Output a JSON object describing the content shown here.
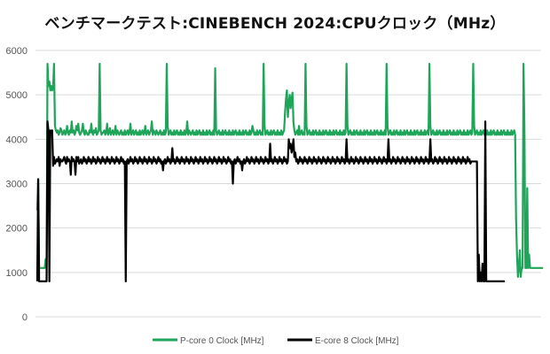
{
  "chart_data": {
    "type": "line",
    "title": "ベンチマークテスト:CINEBENCH 2024:CPUクロック（MHz）",
    "xlabel": "",
    "ylabel": "",
    "ylim": [
      0,
      6000
    ],
    "y_ticks": [
      "0",
      "1000",
      "2000",
      "3000",
      "4000",
      "5000",
      "6000"
    ],
    "grid": true,
    "legend_position": "bottom",
    "n_points": 540,
    "series": [
      {
        "name": "P-core 0 Clock [MHz]",
        "color": "#1fa55a",
        "values": [
          2400,
          3100,
          1100,
          1100,
          1100,
          1100,
          1100,
          1100,
          1100,
          1300,
          1100,
          5700,
          5200,
          5300,
          5100,
          5200,
          5100,
          5150,
          5700,
          4300,
          4200,
          4150,
          4200,
          4100,
          4150,
          4250,
          4200,
          4100,
          4150,
          4200,
          4100,
          4150,
          4300,
          4150,
          4100,
          4200,
          4150,
          4400,
          4150,
          4200,
          4100,
          4150,
          4300,
          4200,
          4350,
          4150,
          4100,
          4150,
          4200,
          4350,
          4150,
          4100,
          4200,
          4150,
          4100,
          4100,
          4200,
          4150,
          4350,
          4150,
          4100,
          4200,
          4150,
          4250,
          4100,
          4150,
          4200,
          5700,
          4200,
          4100,
          4150,
          4150,
          4200,
          4100,
          4150,
          4350,
          4100,
          4150,
          4250,
          4100,
          4150,
          4200,
          4100,
          4150,
          4300,
          4100,
          4200,
          4150,
          4100,
          4150,
          4200,
          4100,
          4150,
          4100,
          4200,
          4100,
          4150,
          4200,
          4100,
          4150,
          4350,
          4100,
          4150,
          4200,
          4100,
          4150,
          4200,
          4100,
          4150,
          4100,
          4200,
          4100,
          4150,
          4200,
          4100,
          4150,
          4300,
          4100,
          4150,
          4200,
          4100,
          4150,
          4200,
          4400,
          4100,
          4200,
          4150,
          4100,
          4200,
          4150,
          4100,
          4150,
          4200,
          4100,
          4150,
          4100,
          4200,
          4100,
          4150,
          5700,
          4300,
          4100,
          4150,
          4200,
          4100,
          4150,
          4100,
          4200,
          4100,
          4150,
          4200,
          4100,
          4150,
          4100,
          4200,
          4100,
          4150,
          4100,
          4200,
          4100,
          4150,
          4400,
          4100,
          4200,
          4150,
          4100,
          4150,
          4200,
          4100,
          4150,
          4100,
          4200,
          4100,
          4150,
          4200,
          4100,
          4150,
          4100,
          4200,
          4100,
          4150,
          4100,
          4200,
          4100,
          4150,
          4200,
          4100,
          4150,
          4100,
          4200,
          4100,
          5600,
          4200,
          4100,
          4150,
          4200,
          4100,
          4150,
          4100,
          4200,
          4100,
          4150,
          4200,
          4100,
          4150,
          4100,
          4200,
          4100,
          4150,
          4100,
          4200,
          4100,
          4150,
          4200,
          4100,
          4150,
          4100,
          4200,
          4100,
          4150,
          4100,
          4200,
          4100,
          4150,
          4200,
          4100,
          4150,
          4100,
          4200,
          4100,
          4150,
          4300,
          4200,
          4100,
          4150,
          4100,
          4200,
          4100,
          4150,
          4200,
          4100,
          4150,
          4100,
          5700,
          4300,
          4100,
          4150,
          4200,
          4100,
          4150,
          4100,
          4200,
          4100,
          4150,
          4200,
          4100,
          4150,
          4100,
          4200,
          4100,
          4150,
          4100,
          4200,
          4100,
          4150,
          4200,
          4600,
          4900,
          5100,
          4500,
          4800,
          5000,
          4700,
          4900,
          5050,
          4400,
          4200,
          4100,
          4150,
          4200,
          4100,
          4300,
          4100,
          4150,
          4200,
          4100,
          4150,
          4100,
          5700,
          4300,
          4100,
          4150,
          4200,
          4100,
          4150,
          4100,
          4200,
          4100,
          4150,
          4200,
          4100,
          4150,
          4100,
          4200,
          4100,
          4150,
          4100,
          4200,
          4100,
          4150,
          4200,
          4100,
          4150,
          4100,
          4200,
          4100,
          4150,
          4100,
          4200,
          4100,
          4150,
          4200,
          4100,
          4150,
          4100,
          4200,
          4100,
          4150,
          4100,
          4200,
          4100,
          4150,
          5700,
          4300,
          4100,
          4150,
          4200,
          4100,
          4150,
          4100,
          4200,
          4100,
          4150,
          4200,
          4100,
          4150,
          4100,
          4200,
          4100,
          4150,
          4100,
          4200,
          4100,
          4150,
          4200,
          4100,
          4150,
          4100,
          4200,
          4100,
          4150,
          4100,
          4200,
          4100,
          4150,
          4200,
          4100,
          4150,
          4100,
          4200,
          4100,
          4150,
          4100,
          4200,
          4100,
          5700,
          4300,
          4100,
          4150,
          4200,
          4100,
          4150,
          4100,
          4200,
          4100,
          4150,
          4200,
          4100,
          4150,
          4100,
          4200,
          4100,
          4150,
          4100,
          4200,
          4100,
          4150,
          4200,
          4100,
          4150,
          4100,
          4200,
          4100,
          4150,
          4100,
          4200,
          4100,
          4150,
          4200,
          4100,
          4150,
          4100,
          4200,
          4100,
          4150,
          4100,
          4200,
          4100,
          4150,
          4200,
          4100,
          5700,
          4300,
          4100,
          4150,
          4200,
          4100,
          4150,
          4100,
          4200,
          4100,
          4150,
          4200,
          4100,
          4150,
          4100,
          4200,
          4100,
          4150,
          4100,
          4200,
          4100,
          4150,
          4200,
          4100,
          4150,
          4100,
          4200,
          4100,
          4150,
          4100,
          4200,
          4100,
          4150,
          4200,
          4100,
          4150,
          4100,
          4200,
          4100,
          4150,
          4100,
          4200,
          4100,
          4150,
          4200,
          4100,
          4150,
          5700,
          4300,
          4100,
          4150,
          4200,
          4100,
          4150,
          4100,
          4200,
          4100,
          4150,
          4200,
          4100,
          4150,
          4100,
          4200,
          4100,
          4150,
          4100,
          4200,
          4100,
          4150,
          4200,
          4100,
          4150,
          4100,
          4200,
          4100,
          4150,
          4100,
          4200,
          4100,
          4150,
          4200,
          4100,
          4150,
          4100,
          4200,
          4100,
          4150,
          4100,
          4200,
          4100,
          4150,
          4200,
          4100,
          2200,
          1400,
          900,
          1100,
          1500,
          900,
          1100,
          1100,
          5700,
          4200,
          1100,
          1100,
          2900,
          1100,
          1400,
          1100,
          1100,
          1100,
          1100,
          1100,
          1100,
          1100,
          1100,
          1100,
          1100,
          1100,
          1100,
          1100,
          1100,
          1100
        ]
      },
      {
        "name": "E-core 8 Clock [MHz]",
        "color": "#000000",
        "values": [
          800,
          3100,
          800,
          800,
          800,
          800,
          800,
          800,
          800,
          800,
          800,
          4400,
          4200,
          800,
          4200,
          4150,
          4200,
          3400,
          3600,
          3450,
          3500,
          3550,
          3500,
          3600,
          3400,
          3550,
          3500,
          3500,
          3550,
          3600,
          3500,
          3450,
          3600,
          3500,
          3550,
          3500,
          3200,
          3600,
          3500,
          3550,
          3500,
          3200,
          3600,
          3500,
          3600,
          3450,
          3500,
          3550,
          3450,
          3500,
          3600,
          3500,
          3550,
          3450,
          3500,
          3600,
          3500,
          3550,
          3450,
          3500,
          3600,
          3500,
          3550,
          3450,
          3500,
          3600,
          3500,
          3550,
          3450,
          3500,
          3600,
          3500,
          3550,
          3450,
          3500,
          3600,
          3500,
          3550,
          3450,
          3500,
          3600,
          3500,
          3550,
          3450,
          3500,
          3600,
          3500,
          3550,
          3450,
          3500,
          3600,
          3500,
          3550,
          3450,
          3500,
          800,
          3500,
          3550,
          3450,
          3500,
          3600,
          3500,
          3550,
          3450,
          3500,
          3600,
          3500,
          3550,
          3450,
          3500,
          3600,
          3500,
          3550,
          3450,
          3500,
          3600,
          3500,
          3550,
          3450,
          3500,
          3600,
          3500,
          3550,
          3450,
          3500,
          3600,
          3500,
          3550,
          3450,
          3500,
          3600,
          3500,
          3550,
          3450,
          3500,
          3300,
          3500,
          3550,
          3450,
          3500,
          3600,
          3500,
          3550,
          3450,
          3500,
          3800,
          3500,
          3550,
          3450,
          3500,
          3600,
          3500,
          3550,
          3450,
          3500,
          3600,
          3500,
          3550,
          3450,
          3500,
          3600,
          3500,
          3550,
          3450,
          3500,
          3600,
          3500,
          3550,
          3450,
          3500,
          3600,
          3500,
          3550,
          3450,
          3500,
          3600,
          3500,
          3550,
          3450,
          3500,
          3600,
          3500,
          3550,
          3450,
          3500,
          3600,
          3500,
          3550,
          3450,
          3500,
          3600,
          3500,
          3550,
          3450,
          3500,
          3600,
          3500,
          3550,
          3450,
          3500,
          3600,
          3500,
          3550,
          3450,
          3500,
          3600,
          3500,
          3550,
          3450,
          3500,
          3000,
          3500,
          3550,
          3450,
          3500,
          3600,
          3500,
          3550,
          3450,
          3500,
          3300,
          3500,
          3550,
          3450,
          3500,
          3600,
          3500,
          3550,
          3450,
          3500,
          3600,
          3500,
          3550,
          3450,
          3500,
          3600,
          3500,
          3550,
          3450,
          3500,
          3600,
          3500,
          3550,
          3450,
          3500,
          3600,
          3500,
          3550,
          3450,
          3500,
          3900,
          3500,
          3550,
          3450,
          3500,
          3600,
          3500,
          3550,
          3450,
          3500,
          3600,
          3500,
          3550,
          3450,
          3500,
          3600,
          3500,
          3550,
          3450,
          3500,
          4000,
          3800,
          3900,
          3700,
          3800,
          4000,
          3600,
          3700,
          3500,
          3550,
          3450,
          3500,
          3600,
          3500,
          3550,
          3450,
          3500,
          3600,
          3500,
          3550,
          3450,
          3500,
          3600,
          3500,
          3550,
          3450,
          3500,
          3600,
          3500,
          3550,
          3450,
          3500,
          3600,
          3500,
          3550,
          3450,
          3500,
          3600,
          3500,
          3550,
          3450,
          3500,
          3600,
          3500,
          3550,
          3450,
          3500,
          3600,
          3500,
          3550,
          3450,
          3500,
          3600,
          3500,
          3550,
          3450,
          3500,
          3600,
          3500,
          3550,
          3450,
          3500,
          4000,
          3500,
          3550,
          3450,
          3500,
          3600,
          3500,
          3550,
          3450,
          3500,
          3600,
          3500,
          3550,
          3450,
          3500,
          3600,
          3500,
          3550,
          3450,
          3500,
          3600,
          3500,
          3550,
          3450,
          3500,
          3600,
          3500,
          3550,
          3450,
          3500,
          3600,
          3500,
          3550,
          3450,
          3500,
          3600,
          3500,
          3550,
          3450,
          3500,
          3600,
          3500,
          3550,
          3450,
          3500,
          4000,
          3500,
          3550,
          3450,
          3500,
          3600,
          3500,
          3550,
          3450,
          3500,
          3600,
          3500,
          3550,
          3450,
          3500,
          3600,
          3500,
          3550,
          3450,
          3500,
          3600,
          3500,
          3550,
          3450,
          3500,
          3600,
          3500,
          3550,
          3450,
          3500,
          3600,
          3500,
          3550,
          3450,
          3500,
          3600,
          3500,
          3550,
          3450,
          3500,
          3600,
          3500,
          3550,
          3450,
          3500,
          4000,
          3500,
          3550,
          3450,
          3500,
          3600,
          3500,
          3550,
          3450,
          3500,
          3600,
          3500,
          3550,
          3450,
          3500,
          3600,
          3500,
          3550,
          3450,
          3500,
          3600,
          3500,
          3550,
          3450,
          3500,
          3600,
          3500,
          3550,
          3450,
          3500,
          3600,
          3500,
          3550,
          3450,
          3500,
          3600,
          3500,
          3550,
          3450,
          3500,
          3600,
          3500,
          3550,
          3450,
          3500,
          3500,
          3500,
          3500,
          3500,
          3500,
          3500,
          800,
          1400,
          800,
          1000,
          800,
          1200,
          800,
          800,
          4400,
          800,
          800,
          800,
          800,
          800,
          800,
          800,
          800,
          800,
          800,
          800,
          800,
          800,
          800,
          800,
          800,
          800,
          800,
          800,
          800,
          800
        ]
      }
    ]
  }
}
